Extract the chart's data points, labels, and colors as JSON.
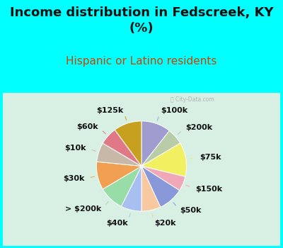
{
  "title": "Income distribution in Fedscreek, KY\n(%)",
  "subtitle": "Hispanic or Latino residents",
  "watermark": "ⓘ City-Data.com",
  "background_top": "#00FFFF",
  "background_chart_color": "#d8f0e4",
  "labels": [
    "$100k",
    "$200k",
    "$75k",
    "$150k",
    "$50k",
    "$20k",
    "$40k",
    "> $200k",
    "$30k",
    "$10k",
    "$60k",
    "$125k"
  ],
  "values": [
    10.0,
    5.5,
    11.5,
    5.0,
    8.5,
    6.5,
    7.0,
    8.5,
    9.5,
    6.5,
    6.0,
    9.5
  ],
  "colors": [
    "#a09ccf",
    "#b8cca8",
    "#f0f060",
    "#f0a8b8",
    "#8898d8",
    "#f8c8a0",
    "#a8c0f0",
    "#98dca8",
    "#f0a050",
    "#c8b8a8",
    "#e07888",
    "#c8a020"
  ],
  "startangle": 90,
  "title_fontsize": 13,
  "subtitle_fontsize": 11,
  "label_fontsize": 8
}
